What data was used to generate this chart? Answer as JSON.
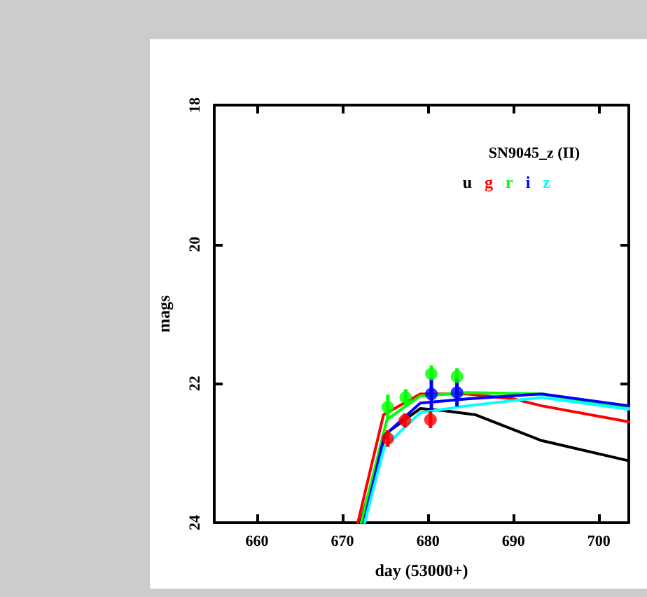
{
  "chart_data": {
    "type": "line",
    "xlabel": "day (53000+)",
    "ylabel": "mags",
    "legend_title": "SN9045_z (II)",
    "legend": "top right",
    "grid": false,
    "marker": "none",
    "xlim": [
      655,
      703.5
    ],
    "xticks": [
      660,
      670,
      680,
      690,
      700
    ],
    "ylim": [
      24,
      18
    ],
    "yticks": [
      24,
      22,
      20,
      18
    ],
    "series": [
      {
        "name": "u",
        "color": "#000000",
        "x": [
          672.1,
          675.05,
          679.1,
          681.8,
          685.6,
          693.3,
          703.5
        ],
        "values": [
          24,
          22.72,
          22.36,
          22.39,
          22.45,
          22.82,
          23.11
        ]
      },
      {
        "name": "g",
        "color": "#ff0000",
        "x": [
          671.8,
          674.8,
          679.1,
          684.6,
          690,
          693.3,
          703.5
        ],
        "values": [
          24,
          22.45,
          22.15,
          22.15,
          22.22,
          22.32,
          22.55
        ]
      },
      {
        "name": "r",
        "color": "#00ff00",
        "x": [
          672.2,
          675.2,
          679.1,
          684.6,
          693.3,
          703.5
        ],
        "values": [
          24,
          22.52,
          22.18,
          22.13,
          22.15,
          22.35
        ]
      },
      {
        "name": "i",
        "color": "#0000ff",
        "x": [
          672.5,
          674.9,
          679.1,
          684.6,
          693.3,
          703.5
        ],
        "values": [
          24,
          22.75,
          22.28,
          22.22,
          22.15,
          22.32
        ]
      },
      {
        "name": "z",
        "color": "#00ffff",
        "x": [
          672.6,
          674.9,
          679.1,
          684.6,
          693.3,
          703.5
        ],
        "values": [
          24,
          22.91,
          22.42,
          22.32,
          22.2,
          22.37
        ]
      },
      {
        "type": "scatter",
        "marker": "circle",
        "color": "#ff0000",
        "x": [
          675.3,
          677.3,
          680.3
        ],
        "values": [
          22.79,
          22.53,
          22.52
        ],
        "errors": [
          0.12,
          0.1,
          0.12
        ]
      },
      {
        "type": "scatter",
        "marker": "circle",
        "color": "#00ff00",
        "x": [
          675.3,
          677.4,
          680.4,
          683.4
        ],
        "values": [
          22.34,
          22.2,
          21.86,
          21.9
        ],
        "errors": [
          0.18,
          0.12,
          0.12,
          0.12
        ]
      },
      {
        "type": "scatter",
        "marker": "circle",
        "color": "#0000ff",
        "x": [
          680.4,
          683.4
        ],
        "values": [
          22.15,
          22.13
        ],
        "errors": [
          0.23,
          0.2
        ]
      }
    ]
  }
}
